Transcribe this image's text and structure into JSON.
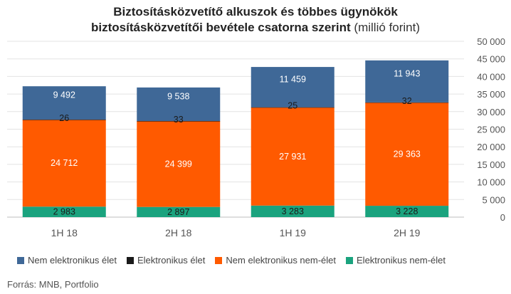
{
  "chart_data": {
    "type": "bar",
    "stacked": true,
    "title_line1": "Biztosításközvetítő alkuszok és többes ügynökök",
    "title_line2": "biztosításközvetítői bevétele csatorna szerint",
    "title_unit": "(millió forint)",
    "categories": [
      "1H 18",
      "2H 18",
      "1H 19",
      "2H 19"
    ],
    "series": [
      {
        "name": "Elektronikus nem-élet",
        "color": "#1aa37e",
        "values": [
          2983,
          2897,
          3283,
          3228
        ],
        "labels": [
          "2 983",
          "2 897",
          "3 283",
          "3 228"
        ]
      },
      {
        "name": "Nem elektronikus nem-élet",
        "color": "#ff5a00",
        "values": [
          24712,
          24399,
          27931,
          29363
        ],
        "labels": [
          "24 712",
          "24 399",
          "27 931",
          "29 363"
        ]
      },
      {
        "name": "Elektronikus élet",
        "color": "#1a1a1a",
        "values": [
          26,
          33,
          25,
          32
        ],
        "labels": [
          "26",
          "33",
          "25",
          "32"
        ]
      },
      {
        "name": "Nem elektronikus élet",
        "color": "#3f6897",
        "values": [
          9492,
          9538,
          11459,
          11943
        ],
        "labels": [
          "9 492",
          "9 538",
          "11 459",
          "11 943"
        ]
      }
    ],
    "yaxis_position": "right",
    "ylim": [
      0,
      50000
    ],
    "yticks": [
      0,
      5000,
      10000,
      15000,
      20000,
      25000,
      30000,
      35000,
      40000,
      45000,
      50000
    ],
    "ytick_labels": [
      "0",
      "5 000",
      "10 000",
      "15 000",
      "20 000",
      "25 000",
      "30 000",
      "35 000",
      "40 000",
      "45 000",
      "50 000"
    ],
    "grid": true,
    "legend_position": "bottom",
    "legend_order": [
      "Nem elektronikus élet",
      "Elektronikus élet",
      "Nem elektronikus nem-élet",
      "Elektronikus nem-élet"
    ]
  },
  "source": "Forrás: MNB, Portfolio"
}
